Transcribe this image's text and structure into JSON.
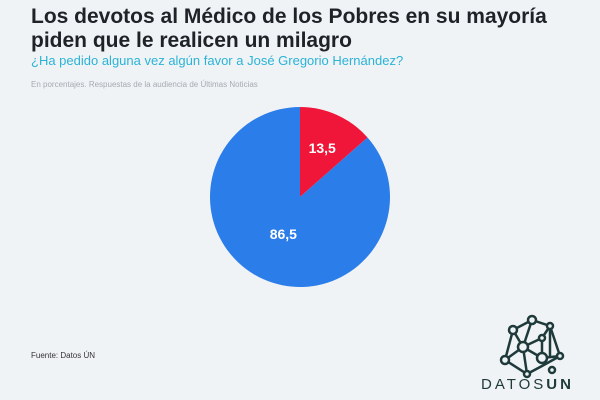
{
  "title": "Los devotos al Médico de los Pobres en su mayoría piden que le realicen un milagro",
  "subtitle": "¿Ha pedido alguna vez algún favor a José Gregorio Hernández?",
  "note": "En porcentajes. Respuestas de la audiencia de Últimas Noticias",
  "source": "Fuente: Datos ÚN",
  "logo": {
    "part1": "DATOS",
    "part2": "UN"
  },
  "chart_data": {
    "type": "pie",
    "title": "¿Ha pedido alguna vez algún favor a José Gregorio Hernández?",
    "slices": [
      {
        "label": "13,5",
        "value": 13.5,
        "color": "#f0163a"
      },
      {
        "label": "86,5",
        "value": 86.5,
        "color": "#2b7de9"
      }
    ]
  }
}
